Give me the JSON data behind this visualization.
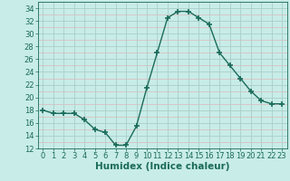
{
  "x": [
    0,
    1,
    2,
    3,
    4,
    5,
    6,
    7,
    8,
    9,
    10,
    11,
    12,
    13,
    14,
    15,
    16,
    17,
    18,
    19,
    20,
    21,
    22,
    23
  ],
  "y": [
    18,
    17.5,
    17.5,
    17.5,
    16.5,
    15,
    14.5,
    12.5,
    12.5,
    15.5,
    21.5,
    27,
    32.5,
    33.5,
    33.5,
    32.5,
    31.5,
    27,
    25,
    23,
    21,
    19.5,
    19,
    19
  ],
  "line_color": "#1a6b5a",
  "marker": "+",
  "marker_size": 4,
  "bg_color": "#c8ece8",
  "grid_major_color": "#aacfca",
  "grid_minor_color": "#ddb8b8",
  "xlabel": "Humidex (Indice chaleur)",
  "xlim": [
    -0.5,
    23.5
  ],
  "ylim": [
    12,
    35
  ],
  "yticks": [
    12,
    14,
    16,
    18,
    20,
    22,
    24,
    26,
    28,
    30,
    32,
    34
  ],
  "xticks": [
    0,
    1,
    2,
    3,
    4,
    5,
    6,
    7,
    8,
    9,
    10,
    11,
    12,
    13,
    14,
    15,
    16,
    17,
    18,
    19,
    20,
    21,
    22,
    23
  ],
  "xlabel_fontsize": 7.5,
  "tick_fontsize": 6
}
